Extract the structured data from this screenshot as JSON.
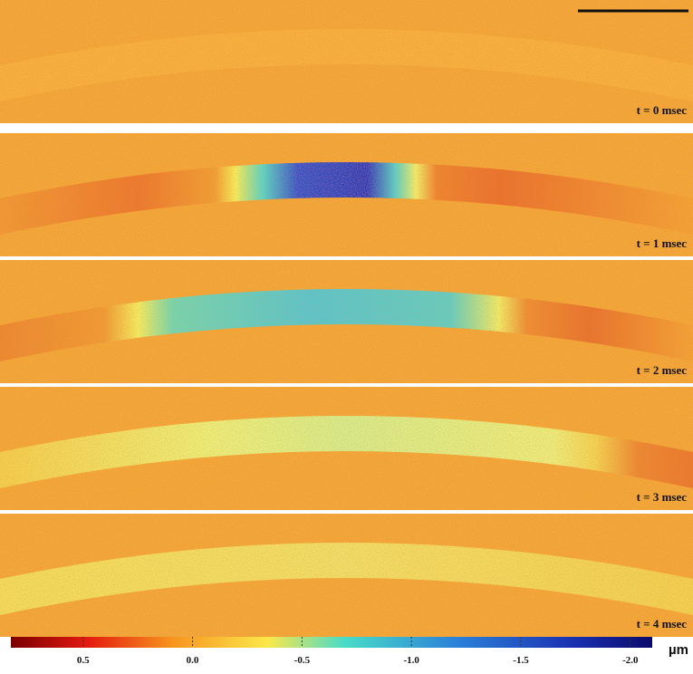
{
  "panels": [
    {
      "label": "t = 0 msec"
    },
    {
      "label": "t = 1 msec"
    },
    {
      "label": "t = 2 msec"
    },
    {
      "label": "t = 3 msec"
    },
    {
      "label": "t = 4 msec"
    }
  ],
  "colorbar": {
    "range": [
      0.83,
      -2.1
    ],
    "ticks": [
      {
        "value": 0.5,
        "label": "0.5"
      },
      {
        "value": 0,
        "label": "0.0"
      },
      {
        "value": -0.5,
        "label": "-0.5"
      },
      {
        "value": -1,
        "label": "-1.0"
      },
      {
        "value": -1.5,
        "label": "-1.5"
      },
      {
        "value": -2,
        "label": "-2.0"
      }
    ],
    "unit": "µm"
  }
}
